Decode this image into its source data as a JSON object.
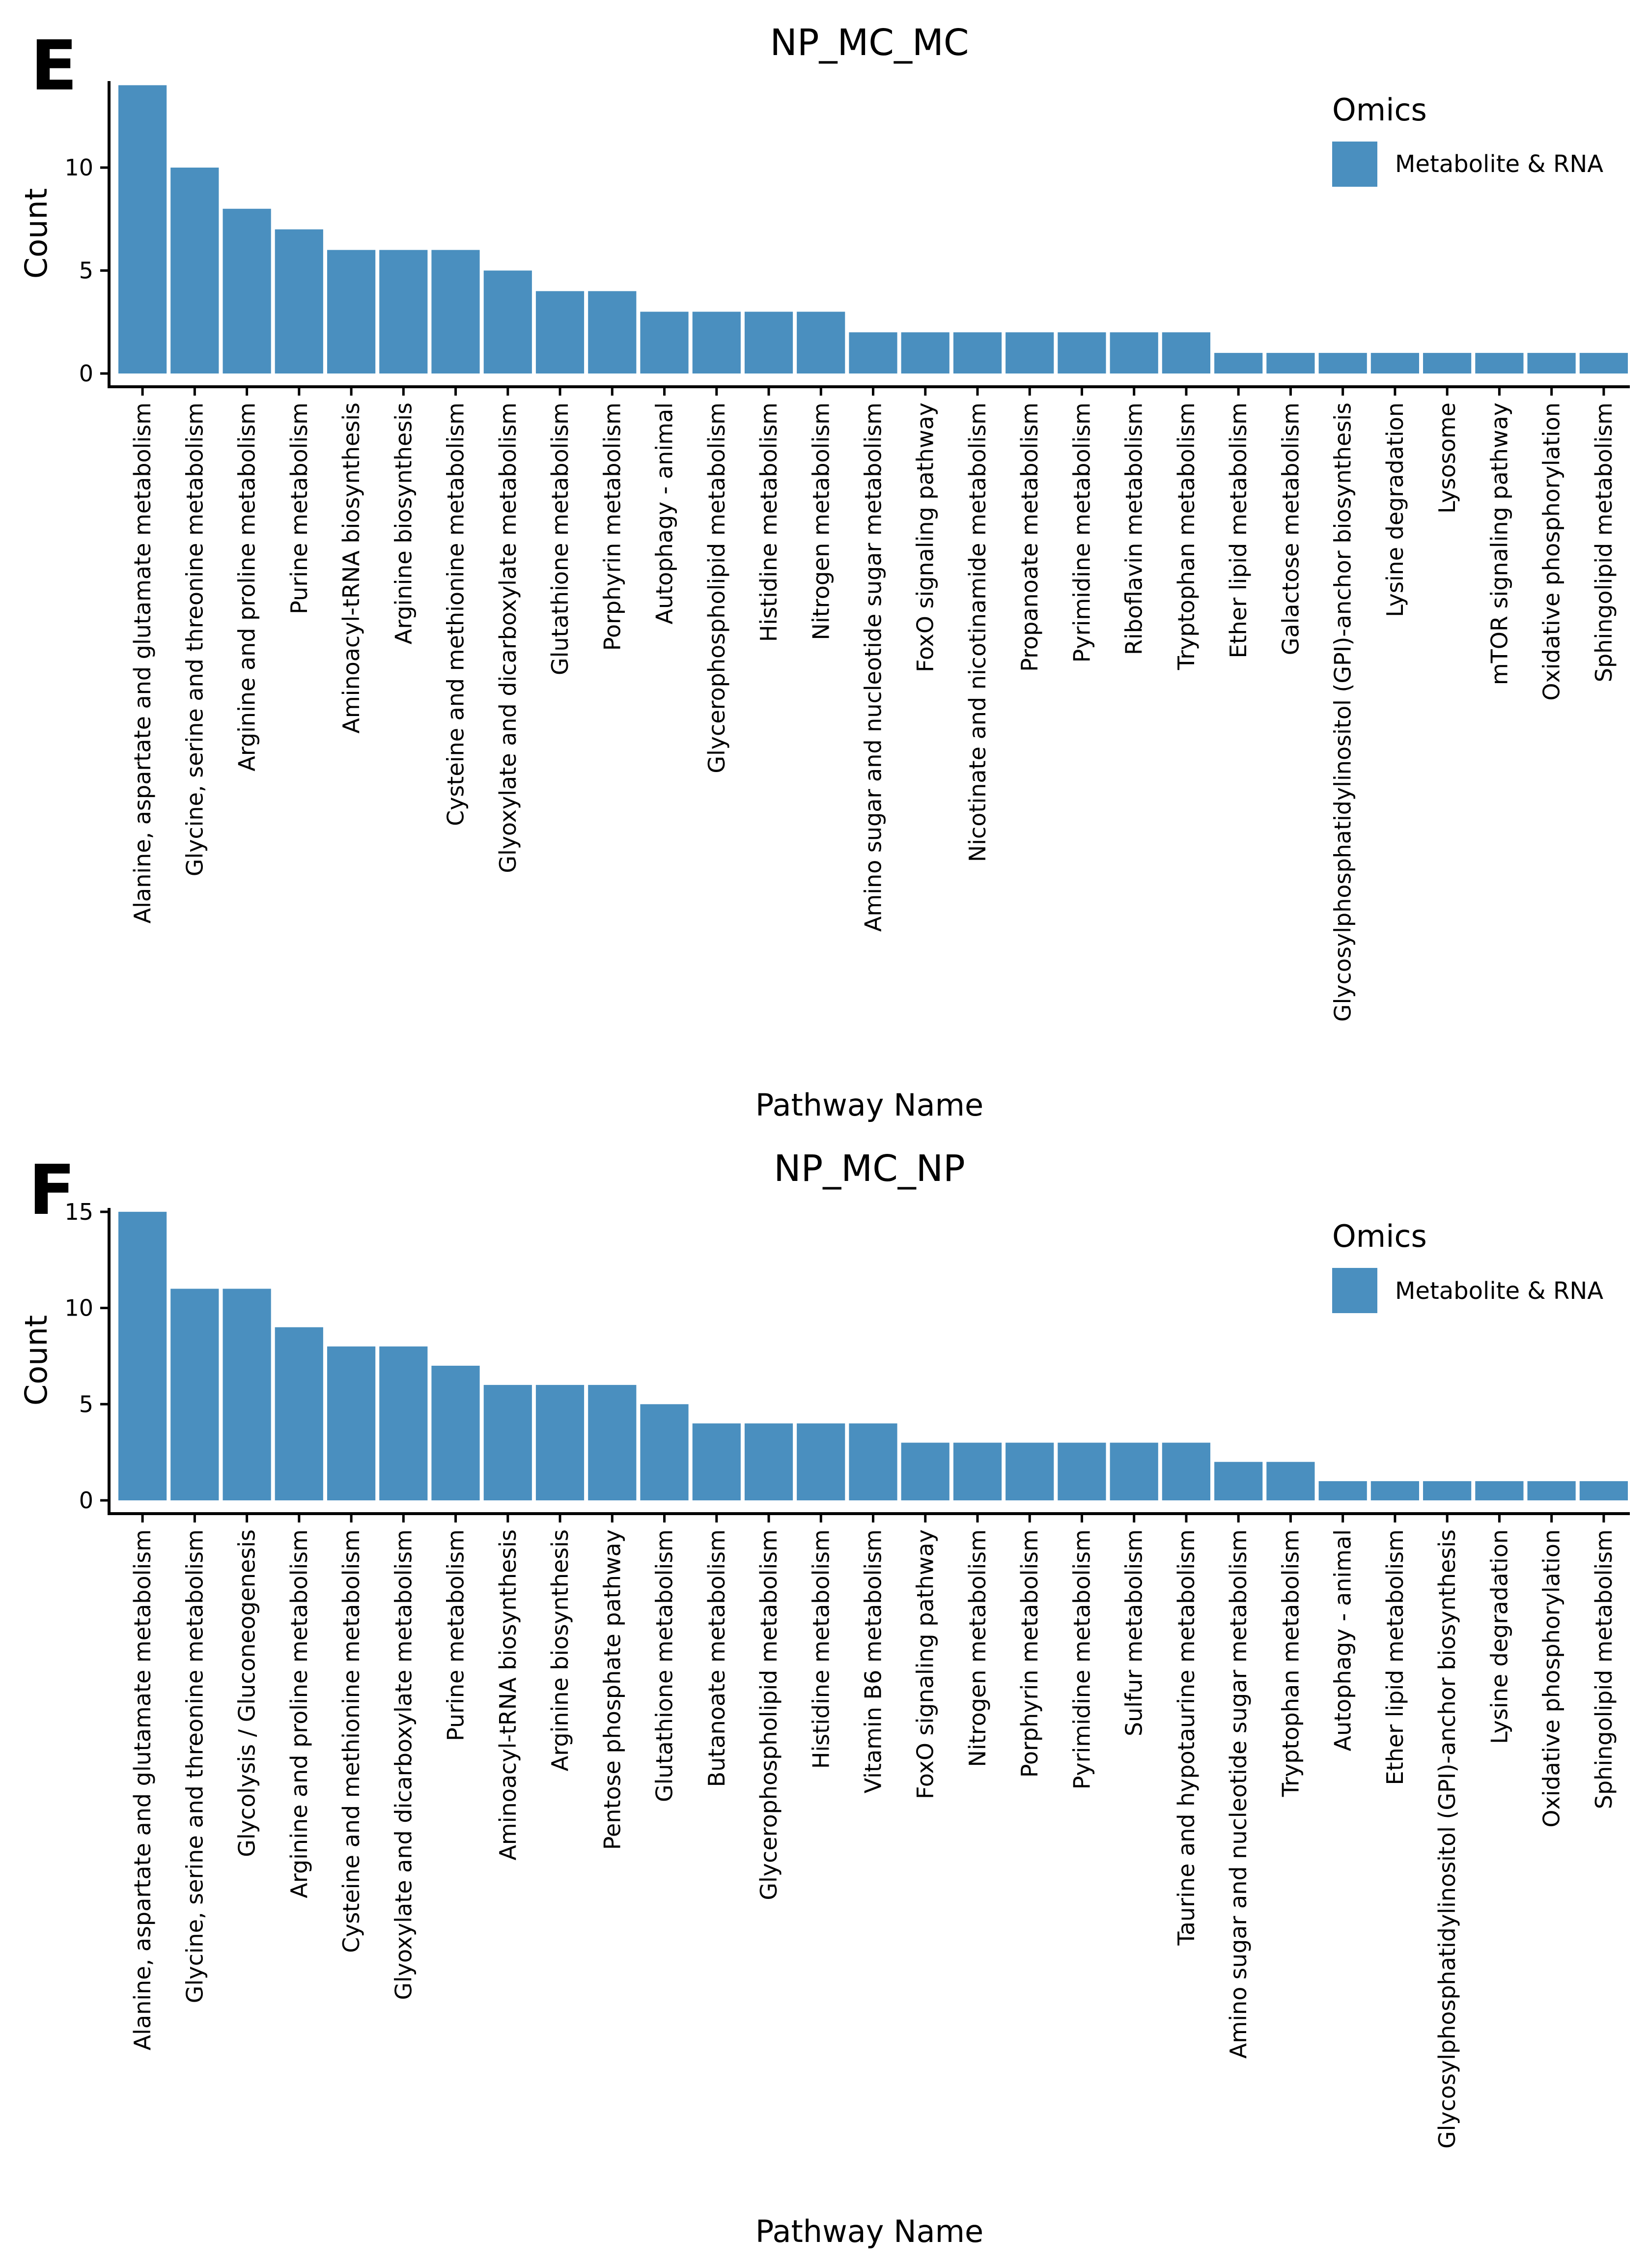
{
  "colors": {
    "bar": "#4a8fbf",
    "axis": "#000000",
    "text": "#000000",
    "background": "#ffffff"
  },
  "chart_data": [
    {
      "panel": "E",
      "type": "bar",
      "title": "NP_MC_MC",
      "xlabel": "Pathway Name",
      "ylabel": "Count",
      "ylim": [
        0,
        14.2
      ],
      "yticks": [
        0,
        5,
        10
      ],
      "legend": {
        "title": "Omics",
        "entries": [
          "Metabolite & RNA"
        ],
        "placement": "top-right"
      },
      "series": [
        {
          "name": "Metabolite & RNA",
          "values": [
            14,
            10,
            8,
            7,
            6,
            6,
            6,
            5,
            4,
            4,
            3,
            3,
            3,
            3,
            2,
            2,
            2,
            2,
            2,
            2,
            2,
            1,
            1,
            1,
            1,
            1,
            1,
            1,
            1
          ]
        }
      ],
      "categories": [
        "Alanine, aspartate and glutamate metabolism",
        "Glycine, serine and threonine metabolism",
        "Arginine and proline metabolism",
        "Purine metabolism",
        "Aminoacyl-tRNA biosynthesis",
        "Arginine biosynthesis",
        "Cysteine and methionine metabolism",
        "Glyoxylate and dicarboxylate metabolism",
        "Glutathione metabolism",
        "Porphyrin metabolism",
        "Autophagy - animal",
        "Glycerophospholipid metabolism",
        "Histidine metabolism",
        "Nitrogen metabolism",
        "Amino sugar and nucleotide sugar metabolism",
        "FoxO signaling pathway",
        "Nicotinate and nicotinamide metabolism",
        "Propanoate metabolism",
        "Pyrimidine metabolism",
        "Riboflavin metabolism",
        "Tryptophan metabolism",
        "Ether lipid metabolism",
        "Galactose metabolism",
        "Glycosylphosphatidylinositol (GPI)-anchor biosynthesis",
        "Lysine degradation",
        "Lysosome",
        "mTOR signaling pathway",
        "Oxidative phosphorylation",
        "Sphingolipid metabolism"
      ]
    },
    {
      "panel": "F",
      "type": "bar",
      "title": "NP_MC_NP",
      "xlabel": "Pathway Name",
      "ylabel": "Count",
      "ylim": [
        0,
        15.2
      ],
      "yticks": [
        0,
        5,
        10,
        15
      ],
      "legend": {
        "title": "Omics",
        "entries": [
          "Metabolite & RNA"
        ],
        "placement": "top-right"
      },
      "series": [
        {
          "name": "Metabolite & RNA",
          "values": [
            15,
            11,
            11,
            9,
            8,
            8,
            7,
            6,
            6,
            6,
            5,
            4,
            4,
            4,
            4,
            3,
            3,
            3,
            3,
            3,
            3,
            2,
            2,
            1,
            1,
            1,
            1,
            1,
            1
          ]
        }
      ],
      "categories": [
        "Alanine, aspartate and glutamate metabolism",
        "Glycine, serine and threonine metabolism",
        "Glycolysis / Gluconeogenesis",
        "Arginine and proline metabolism",
        "Cysteine and methionine metabolism",
        "Glyoxylate and dicarboxylate metabolism",
        "Purine metabolism",
        "Aminoacyl-tRNA biosynthesis",
        "Arginine biosynthesis",
        "Pentose phosphate pathway",
        "Glutathione metabolism",
        "Butanoate metabolism",
        "Glycerophospholipid metabolism",
        "Histidine metabolism",
        "Vitamin B6 metabolism",
        "FoxO signaling pathway",
        "Nitrogen metabolism",
        "Porphyrin metabolism",
        "Pyrimidine metabolism",
        "Sulfur metabolism",
        "Taurine and hypotaurine metabolism",
        "Amino sugar and nucleotide sugar metabolism",
        "Tryptophan metabolism",
        "Autophagy - animal",
        "Ether lipid metabolism",
        "Glycosylphosphatidylinositol (GPI)-anchor biosynthesis",
        "Lysine degradation",
        "Oxidative phosphorylation",
        "Sphingolipid metabolism"
      ]
    }
  ]
}
